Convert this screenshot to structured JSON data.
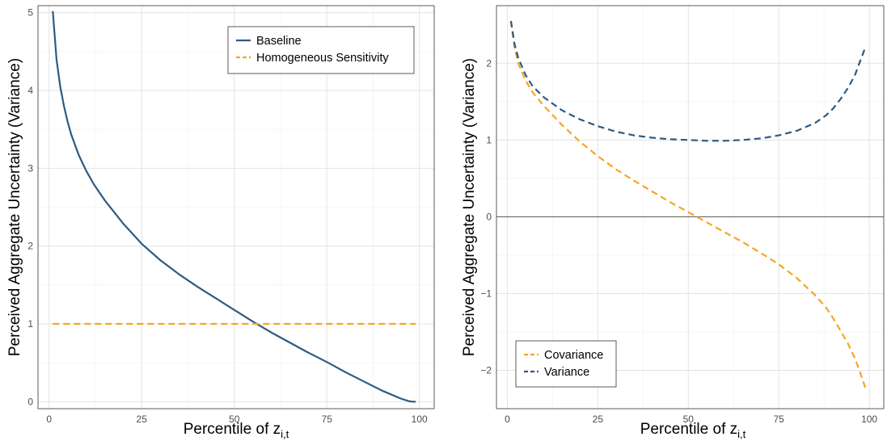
{
  "chart_data": [
    {
      "type": "line",
      "xlabel": "Percentile of z",
      "xlabel_sub": "i,t",
      "ylabel": "Perceived Aggregate Uncertainty (Variance)",
      "xlim": [
        -3,
        104
      ],
      "ylim": [
        -0.09,
        5.09
      ],
      "x_ticks": [
        0,
        25,
        50,
        75,
        100
      ],
      "y_ticks": [
        0,
        1,
        2,
        3,
        4,
        5
      ],
      "legend_position": "top-right",
      "grid": true,
      "series": [
        {
          "name": "Baseline",
          "color": "#2c5b83",
          "dash": "solid",
          "x": [
            1,
            2,
            3,
            4,
            5,
            6,
            8,
            10,
            12,
            15,
            20,
            25,
            30,
            35,
            40,
            45,
            50,
            55,
            60,
            65,
            70,
            75,
            80,
            85,
            90,
            95,
            97,
            98,
            99
          ],
          "y": [
            5.02,
            4.4,
            4.05,
            3.8,
            3.6,
            3.43,
            3.17,
            2.97,
            2.8,
            2.59,
            2.29,
            2.03,
            1.82,
            1.64,
            1.48,
            1.33,
            1.18,
            1.03,
            0.89,
            0.76,
            0.63,
            0.51,
            0.38,
            0.26,
            0.14,
            0.04,
            0.01,
            0.0,
            0.0
          ]
        },
        {
          "name": "Homogeneous Sensitivity",
          "color": "#f5a623",
          "dash": "dashed",
          "x": [
            1,
            99
          ],
          "y": [
            1.0,
            1.0
          ]
        }
      ]
    },
    {
      "type": "line",
      "xlabel": "Percentile of z",
      "xlabel_sub": "i,t",
      "ylabel": "Perceived Aggregate Uncertainty (Variance)",
      "xlim": [
        -3,
        104
      ],
      "ylim": [
        -2.5,
        2.75
      ],
      "x_ticks": [
        0,
        25,
        50,
        75,
        100
      ],
      "y_ticks": [
        -2,
        -1,
        0,
        1,
        2
      ],
      "hline": 0,
      "legend_position": "bottom-left",
      "grid": true,
      "series": [
        {
          "name": "Covariance",
          "color": "#f5a623",
          "dash": "dashed",
          "x": [
            1,
            2,
            3,
            5,
            7,
            10,
            15,
            20,
            25,
            30,
            35,
            40,
            45,
            50,
            55,
            60,
            65,
            70,
            75,
            80,
            85,
            88,
            90,
            92,
            94,
            96,
            97,
            98,
            99
          ],
          "y": [
            2.55,
            2.2,
            2.0,
            1.78,
            1.62,
            1.45,
            1.2,
            0.98,
            0.79,
            0.62,
            0.47,
            0.33,
            0.19,
            0.06,
            -0.07,
            -0.2,
            -0.33,
            -0.47,
            -0.62,
            -0.8,
            -1.02,
            -1.18,
            -1.32,
            -1.48,
            -1.64,
            -1.84,
            -1.97,
            -2.1,
            -2.24
          ]
        },
        {
          "name": "Variance",
          "color": "#2c5b83",
          "dash": "dashed",
          "x": [
            1,
            2,
            3,
            5,
            7,
            10,
            15,
            20,
            25,
            30,
            35,
            40,
            45,
            50,
            55,
            60,
            65,
            70,
            75,
            80,
            85,
            88,
            90,
            92,
            94,
            96,
            97,
            98,
            99
          ],
          "y": [
            2.55,
            2.25,
            2.07,
            1.85,
            1.7,
            1.56,
            1.39,
            1.27,
            1.18,
            1.11,
            1.06,
            1.03,
            1.01,
            1.0,
            0.99,
            0.99,
            1.0,
            1.02,
            1.06,
            1.12,
            1.22,
            1.32,
            1.41,
            1.53,
            1.67,
            1.84,
            1.97,
            2.09,
            2.22
          ]
        }
      ]
    }
  ]
}
